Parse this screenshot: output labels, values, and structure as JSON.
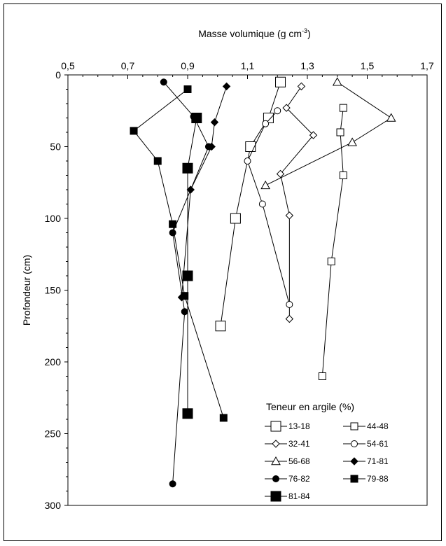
{
  "chart_data": {
    "type": "line",
    "title": "",
    "xlabel": "Masse volumique (g cm",
    "xlabel_sup": "-3",
    "xlabel_end": ")",
    "ylabel": "Profondeur (cm)",
    "xlim": [
      0.5,
      1.7
    ],
    "ylim": [
      0,
      300
    ],
    "y_inverted": true,
    "x_axis_position": "top",
    "x_ticks": [
      0.5,
      0.7,
      0.9,
      1.1,
      1.3,
      1.5,
      1.7
    ],
    "x_tick_labels": [
      "0,5",
      "0,7",
      "0,9",
      "1,1",
      "1,3",
      "1,5",
      "1,7"
    ],
    "y_ticks": [
      0,
      50,
      100,
      150,
      200,
      250,
      300
    ],
    "y_tick_labels": [
      "0",
      "50",
      "100",
      "150",
      "200",
      "250",
      "300"
    ],
    "grid": false,
    "legend_title": "Teneur en argile (%)",
    "legend_position": "bottom-right",
    "series": [
      {
        "name": "13-18",
        "marker": "square-open",
        "size": "large",
        "x": [
          1.21,
          1.17,
          1.11,
          1.06,
          1.01
        ],
        "y": [
          5,
          30,
          50,
          100,
          175
        ]
      },
      {
        "name": "44-48",
        "marker": "square-open",
        "size": "small",
        "x": [
          1.42,
          1.41,
          1.42,
          1.38,
          1.35
        ],
        "y": [
          23,
          40,
          70,
          130,
          210
        ]
      },
      {
        "name": "32-41",
        "marker": "diamond-open",
        "size": "small",
        "x": [
          1.28,
          1.23,
          1.32,
          1.21,
          1.24,
          1.24
        ],
        "y": [
          8,
          23,
          42,
          69,
          98,
          170
        ]
      },
      {
        "name": "54-61",
        "marker": "circle-open",
        "size": "small",
        "x": [
          1.2,
          1.16,
          1.1,
          1.15,
          1.24
        ],
        "y": [
          25,
          34,
          60,
          90,
          160
        ]
      },
      {
        "name": "56-68",
        "marker": "triangle-open",
        "size": "small",
        "x": [
          1.4,
          1.58,
          1.45,
          1.16
        ],
        "y": [
          5,
          30,
          47,
          77
        ]
      },
      {
        "name": "71-81",
        "marker": "diamond-filled",
        "size": "small",
        "x": [
          1.03,
          0.99,
          0.98,
          0.91,
          0.88
        ],
        "y": [
          8,
          33,
          50,
          80,
          155
        ]
      },
      {
        "name": "76-82",
        "marker": "circle-filled",
        "size": "small",
        "x": [
          0.82,
          0.92,
          0.97,
          0.85,
          0.89,
          0.85
        ],
        "y": [
          5,
          29,
          50,
          110,
          165,
          285
        ]
      },
      {
        "name": "79-88",
        "marker": "square-filled",
        "size": "small",
        "x": [
          0.9,
          0.72,
          0.8,
          0.85,
          0.89,
          1.02
        ],
        "y": [
          10,
          39,
          60,
          104,
          154,
          239
        ]
      },
      {
        "name": "81-84",
        "marker": "square-filled",
        "size": "large",
        "x": [
          0.93,
          0.9,
          0.9,
          0.9
        ],
        "y": [
          30,
          65,
          140,
          236
        ]
      }
    ]
  }
}
